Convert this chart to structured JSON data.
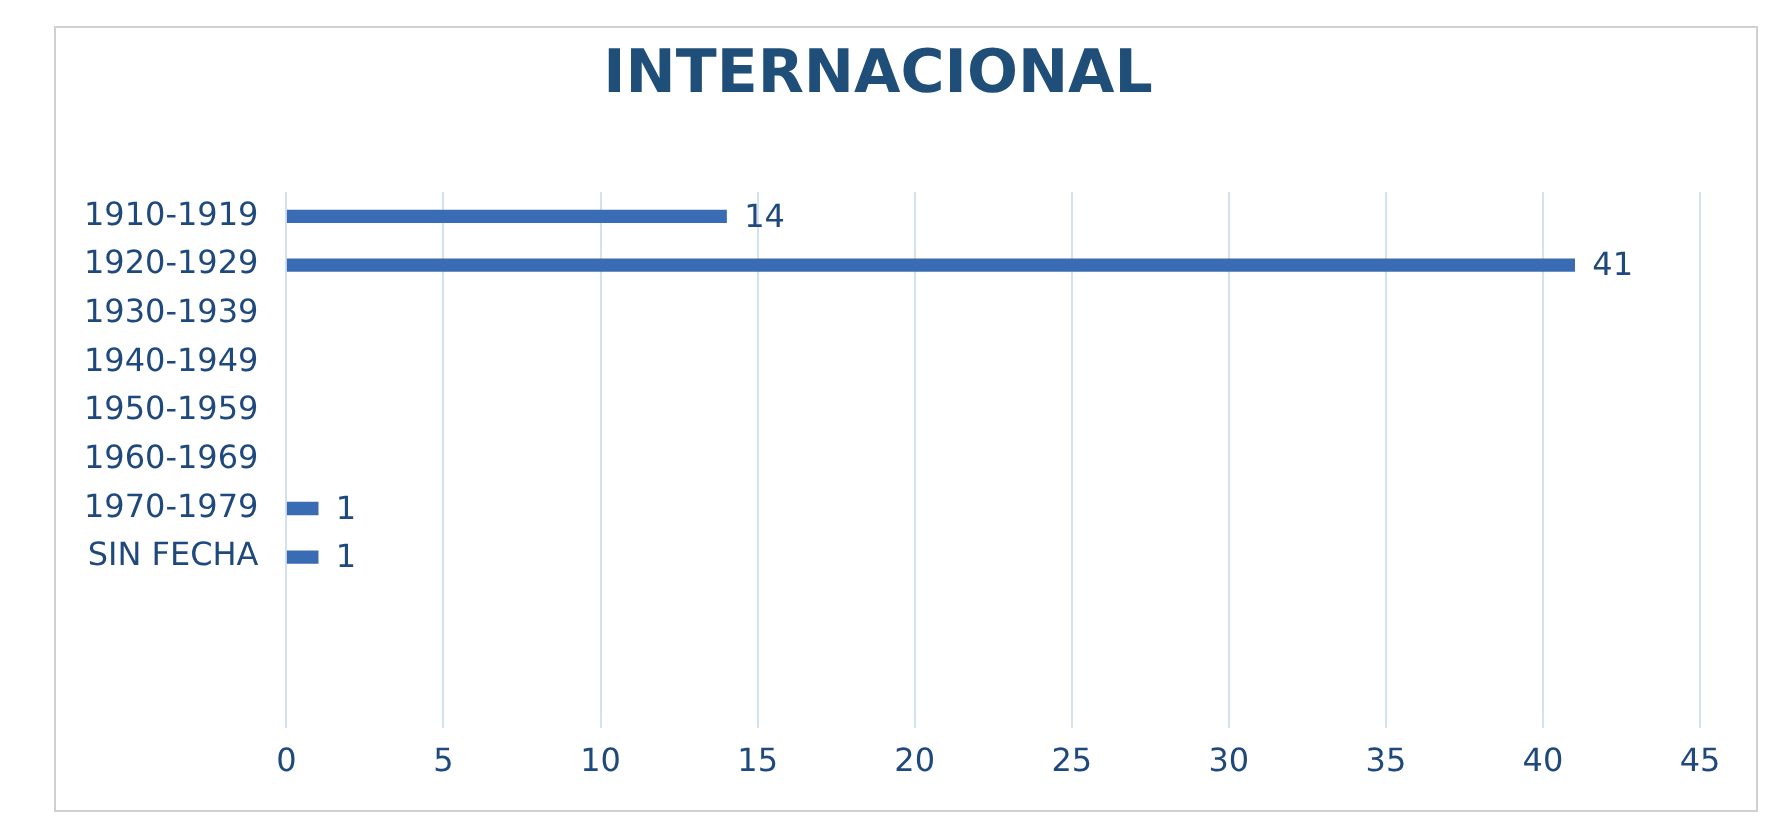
{
  "chart_data": {
    "type": "bar",
    "orientation": "horizontal",
    "title": "INTERNACIONAL",
    "categories": [
      "1910-1919",
      "1920-1929",
      "1930-1939",
      "1940-1949",
      "1950-1959",
      "1960-1969",
      "1970-1979",
      "SIN FECHA",
      null,
      null,
      null
    ],
    "values": [
      14,
      41,
      null,
      null,
      null,
      null,
      1,
      1,
      null,
      null,
      null
    ],
    "color": "#3a6cb4",
    "xlim": [
      0,
      45
    ],
    "xticks": [
      0,
      5,
      10,
      15,
      20,
      25,
      30,
      35,
      40,
      45
    ],
    "grid": "x",
    "data_labels": true,
    "legend": false
  }
}
